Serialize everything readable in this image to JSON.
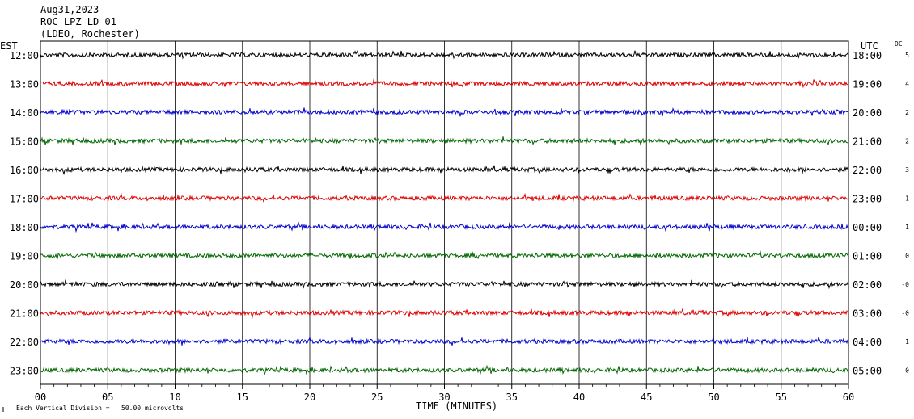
{
  "header": {
    "date": "Aug31,2023",
    "station": "ROC LPZ LD 01",
    "network": "(LDEO, Rochester)"
  },
  "left_timezone": "EST",
  "right_timezone": "UTC",
  "dc_label": "DC",
  "footer": {
    "scale_note": "Each Vertical Division =   50.00 microvolts"
  },
  "chart_data": {
    "type": "line",
    "title": "",
    "xlabel": "TIME (MINUTES)",
    "xlim": [
      0,
      60
    ],
    "x_ticks": [
      "00",
      "05",
      "10",
      "15",
      "20",
      "25",
      "30",
      "35",
      "40",
      "45",
      "50",
      "55",
      "60"
    ],
    "grid_x": true,
    "trace_colors": [
      "#000000",
      "#dd0000",
      "#0000cc",
      "#006600"
    ],
    "rows": [
      {
        "left": "12:00",
        "right": "18:00",
        "dc": "5"
      },
      {
        "left": "13:00",
        "right": "19:00",
        "dc": "4"
      },
      {
        "left": "14:00",
        "right": "20:00",
        "dc": "2"
      },
      {
        "left": "15:00",
        "right": "21:00",
        "dc": "2"
      },
      {
        "left": "16:00",
        "right": "22:00",
        "dc": "3"
      },
      {
        "left": "17:00",
        "right": "23:00",
        "dc": "1"
      },
      {
        "left": "18:00",
        "right": "00:00",
        "dc": "1"
      },
      {
        "left": "19:00",
        "right": "01:00",
        "dc": "0"
      },
      {
        "left": "20:00",
        "right": "02:00",
        "dc": "-0"
      },
      {
        "left": "21:00",
        "right": "03:00",
        "dc": "-0"
      },
      {
        "left": "22:00",
        "right": "04:00",
        "dc": "1"
      },
      {
        "left": "23:00",
        "right": "05:00",
        "dc": "-0"
      }
    ]
  }
}
